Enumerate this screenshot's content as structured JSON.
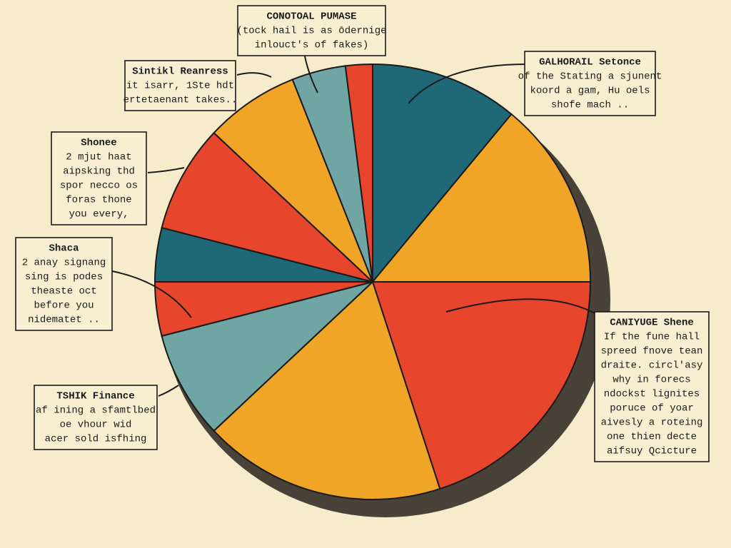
{
  "chart_data": {
    "type": "pie",
    "values": [
      11,
      14,
      20,
      18,
      8,
      4,
      4,
      8,
      7,
      4,
      2
    ],
    "colors": [
      "#1f6877",
      "#f0a526",
      "#e8462c",
      "#f0a526",
      "#6fa6a4",
      "#e8462c",
      "#1f6877",
      "#e8462c",
      "#f0a526",
      "#6fa6a4",
      "#e8462c"
    ],
    "annotations": [
      {
        "title": "CONOTOAL PUMASE",
        "lines": [
          "(tock hail is as ōdernige",
          "inlouct's of fakes)"
        ]
      },
      {
        "title": "GALHORAIL Setonce",
        "lines": [
          "of the Stating a sjunent",
          "koord a gam, Hu oels",
          "shofe mach .."
        ]
      },
      {
        "title": "Sintikl Reanress",
        "lines": [
          "it isarr, 1Ste hdt",
          "ertetaenant takes.."
        ]
      },
      {
        "title": "Shonee",
        "lines": [
          "2 mjut haat",
          "aipsking thd",
          "spor necco os",
          "foras thone",
          "you every,"
        ]
      },
      {
        "title": "Shaca",
        "lines": [
          "2 anay signang",
          "sing is podes",
          "theaste oct",
          "before you",
          "nidematet .."
        ]
      },
      {
        "title": "TSHIK Finance",
        "lines": [
          "af ining a sfamtlbed",
          "oe vhour wid",
          "acer sold isfhing"
        ]
      },
      {
        "title": "CANIYUGE Shene",
        "lines": [
          "If the fune hall",
          "spreed fnove tean",
          "draite. circl'asy",
          "why in forecs",
          "ndockst lignites",
          "poruce of yoar",
          "aivesly a roteing",
          "one thien decte",
          "aifsuy Qcicture"
        ]
      }
    ]
  }
}
